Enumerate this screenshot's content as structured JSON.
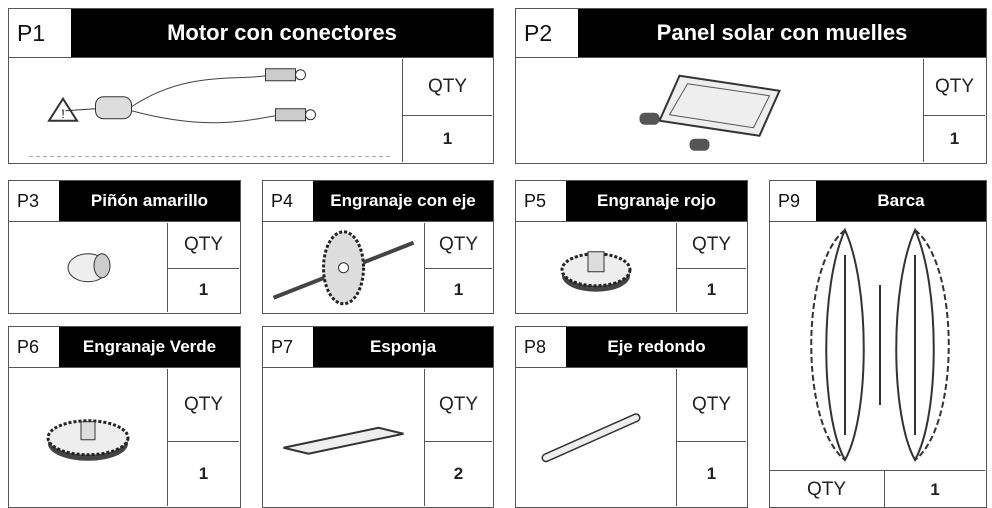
{
  "parts": [
    {
      "id": "P1",
      "name": "Motor con conectores",
      "qty_label": "QTY",
      "qty": 1
    },
    {
      "id": "P2",
      "name": "Panel solar con muelles",
      "qty_label": "QTY",
      "qty": 1
    },
    {
      "id": "P3",
      "name": "Piñón amarillo",
      "qty_label": "QTY",
      "qty": 1
    },
    {
      "id": "P4",
      "name": "Engranaje con eje",
      "qty_label": "QTY",
      "qty": 1
    },
    {
      "id": "P5",
      "name": "Engranaje rojo",
      "qty_label": "QTY",
      "qty": 1
    },
    {
      "id": "P6",
      "name": "Engranaje Verde",
      "qty_label": "QTY",
      "qty": 1
    },
    {
      "id": "P7",
      "name": "Esponja",
      "qty_label": "QTY",
      "qty": 2
    },
    {
      "id": "P8",
      "name": "Eje redondo",
      "qty_label": "QTY",
      "qty": 1
    },
    {
      "id": "P9",
      "name": "Barca",
      "qty_label": "QTY",
      "qty": 1
    }
  ]
}
